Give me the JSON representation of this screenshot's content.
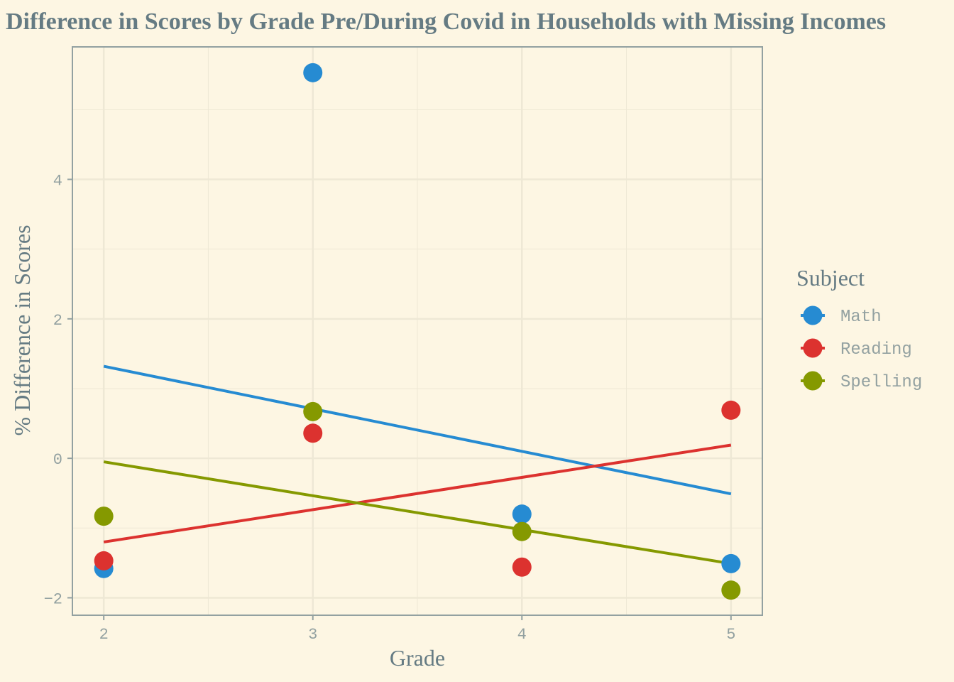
{
  "chart_data": {
    "type": "scatter",
    "title": "Difference in Scores by Grade Pre/During Covid in Households with Missing Incomes",
    "xlabel": "Grade",
    "ylabel": "% Difference in Scores",
    "x_ticks": [
      2,
      3,
      4,
      5
    ],
    "y_ticks": [
      -2,
      0,
      2,
      4
    ],
    "xlim": [
      1.85,
      5.15
    ],
    "ylim": [
      -2.25,
      5.9
    ],
    "grid": true,
    "legend": {
      "title": "Subject",
      "position": "right"
    },
    "series": [
      {
        "name": "Math",
        "color": "#268bd2",
        "points": [
          [
            2,
            -1.58
          ],
          [
            3,
            5.53
          ],
          [
            4,
            -0.8
          ],
          [
            5,
            -1.51
          ]
        ],
        "trend": [
          [
            2,
            1.32
          ],
          [
            5,
            -0.51
          ]
        ]
      },
      {
        "name": "Reading",
        "color": "#dc322f",
        "points": [
          [
            2,
            -1.47
          ],
          [
            3,
            0.36
          ],
          [
            4,
            -1.56
          ],
          [
            5,
            0.69
          ]
        ],
        "trend": [
          [
            2,
            -1.2
          ],
          [
            5,
            0.19
          ]
        ]
      },
      {
        "name": "Spelling",
        "color": "#859900",
        "points": [
          [
            2,
            -0.83
          ],
          [
            3,
            0.67
          ],
          [
            4,
            -1.05
          ],
          [
            5,
            -1.89
          ]
        ],
        "trend": [
          [
            2,
            -0.05
          ],
          [
            5,
            -1.51
          ]
        ]
      }
    ]
  }
}
